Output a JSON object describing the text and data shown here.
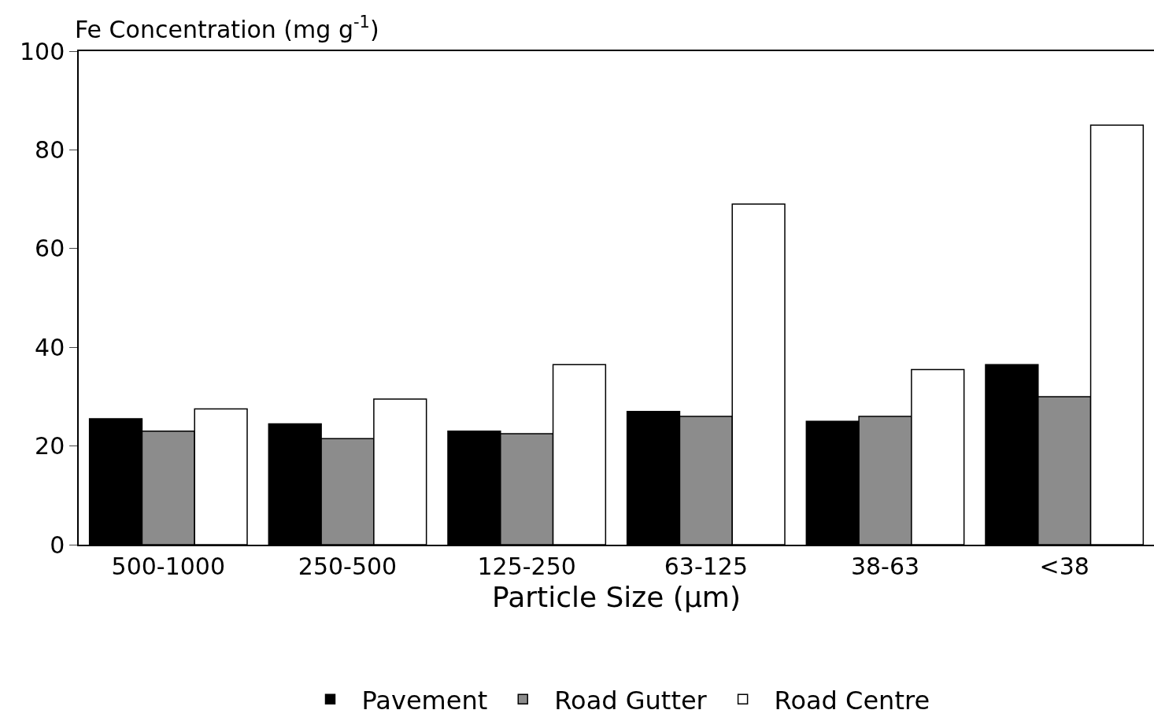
{
  "chart_data": {
    "type": "bar",
    "ylabel": "Fe Concentration (mg g$^{-1}$)",
    "xlabel": "Particle Size (µm)",
    "categories": [
      "500-1000",
      "250-500",
      "125-250",
      "63-125",
      "38-63",
      "<38"
    ],
    "series": [
      {
        "name": "Pavement",
        "color": "#000000",
        "values": [
          25.5,
          24.5,
          23,
          27,
          25,
          36.5
        ]
      },
      {
        "name": "Road Gutter",
        "color": "#8c8c8c",
        "values": [
          23,
          21.5,
          22.5,
          26,
          26,
          30
        ]
      },
      {
        "name": "Road Centre",
        "color": "#ffffff",
        "values": [
          27.5,
          29.5,
          36.5,
          69,
          35.5,
          85
        ]
      }
    ],
    "ylim": [
      0,
      100
    ],
    "yticks": [
      0,
      20,
      40,
      60,
      80,
      100
    ],
    "legend": "bottom"
  }
}
